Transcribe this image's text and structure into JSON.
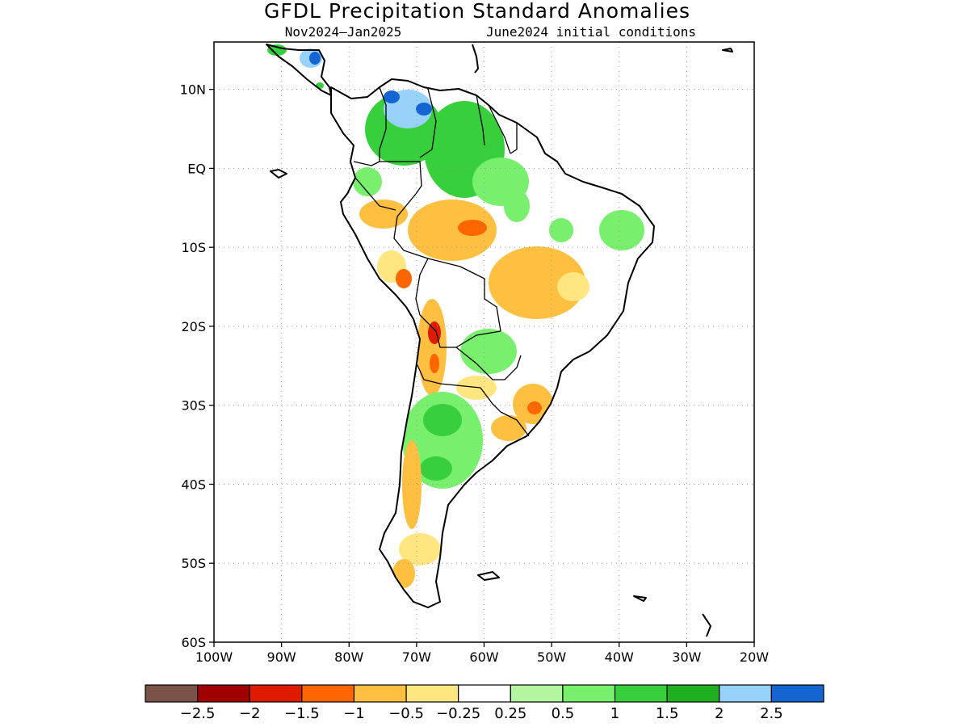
{
  "title": "GFDL Precipitation Standard Anomalies",
  "subtitle_left": "Nov2024–Jan2025",
  "subtitle_right": "June2024 initial conditions",
  "map": {
    "lon_range": [
      -100,
      -20
    ],
    "lat_range": [
      -60,
      16
    ],
    "lon_ticks": [
      {
        "value": -100,
        "label": "100W"
      },
      {
        "value": -90,
        "label": "90W"
      },
      {
        "value": -80,
        "label": "80W"
      },
      {
        "value": -70,
        "label": "70W"
      },
      {
        "value": -60,
        "label": "60W"
      },
      {
        "value": -50,
        "label": "50W"
      },
      {
        "value": -40,
        "label": "40W"
      },
      {
        "value": -30,
        "label": "30W"
      },
      {
        "value": -20,
        "label": "20W"
      }
    ],
    "lat_ticks": [
      {
        "value": 10,
        "label": "10N"
      },
      {
        "value": 0,
        "label": "EQ"
      },
      {
        "value": -10,
        "label": "10S"
      },
      {
        "value": -20,
        "label": "20S"
      },
      {
        "value": -30,
        "label": "30S"
      },
      {
        "value": -40,
        "label": "40S"
      },
      {
        "value": -50,
        "label": "50S"
      },
      {
        "value": -60,
        "label": "60S"
      }
    ],
    "grid": true
  },
  "colorbar": {
    "colors": [
      "#7a5247",
      "#a10000",
      "#e01a00",
      "#ff6600",
      "#ffbf40",
      "#ffe680",
      "#ffffff",
      "#b4f5a0",
      "#78f06e",
      "#37d03c",
      "#1fb01f",
      "#96d2fa",
      "#1464d2"
    ],
    "labels": [
      "−2.5",
      "−2",
      "−1.5",
      "−1",
      "−0.5",
      "−0.25",
      "0.25",
      "0.5",
      "1",
      "1.5",
      "2",
      "2.5"
    ]
  }
}
